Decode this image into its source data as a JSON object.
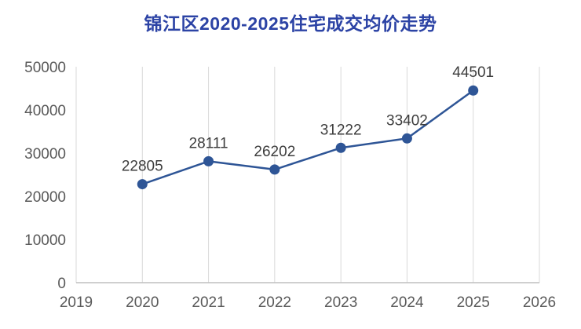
{
  "chart_data": {
    "type": "line",
    "title": "锦江区2020-2025住宅成交均价走势",
    "x": [
      2020,
      2021,
      2022,
      2023,
      2024,
      2025
    ],
    "values": [
      22805,
      28111,
      26202,
      31222,
      33402,
      44501
    ],
    "xlim": [
      2019,
      2026
    ],
    "ylim": [
      0,
      50000
    ],
    "x_ticks": [
      2019,
      2020,
      2021,
      2022,
      2023,
      2024,
      2025,
      2026
    ],
    "y_ticks": [
      0,
      10000,
      20000,
      30000,
      40000,
      50000
    ],
    "grid": "vertical-only",
    "legend": "none",
    "colors": {
      "line": "#2e5596",
      "marker": "#2e5596",
      "title": "#2c43a5",
      "data_label": "#3d3d3d",
      "tick_label": "#595959",
      "gridline": "#d9d9d9",
      "axis_line": "#bfbfbf"
    }
  }
}
